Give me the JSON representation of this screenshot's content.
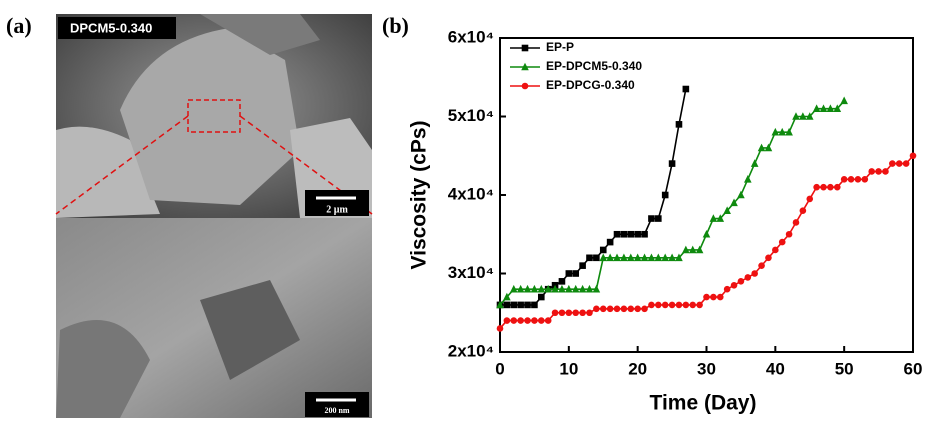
{
  "figure": {
    "panel_a": "(a)",
    "sem_label": "DPCM5-0.340",
    "scale_top": "2 µm",
    "scale_bottom": "200 nm"
  },
  "chart_data": {
    "type": "line",
    "panel_label": "(b)",
    "xlabel": "Time (Day)",
    "ylabel": "Viscosity (cPs)",
    "xlim": [
      0,
      60
    ],
    "xticks": [
      0,
      10,
      20,
      30,
      40,
      50,
      60
    ],
    "ylim": [
      20000,
      60000
    ],
    "yticks": [
      {
        "value": 20000,
        "label": "2x10⁴"
      },
      {
        "value": 30000,
        "label": "3x10⁴"
      },
      {
        "value": 40000,
        "label": "4x10⁴"
      },
      {
        "value": 50000,
        "label": "5x10⁴"
      },
      {
        "value": 60000,
        "label": "6x10⁴"
      }
    ],
    "legend": "upper left",
    "series": [
      {
        "name": "EP-P",
        "color": "#000000",
        "marker": "square",
        "x": [
          0,
          1,
          2,
          3,
          4,
          5,
          6,
          7,
          8,
          9,
          10,
          11,
          12,
          13,
          14,
          15,
          16,
          17,
          18,
          19,
          20,
          21,
          22,
          23,
          24,
          25,
          26,
          27
        ],
        "values": [
          26000,
          26000,
          26000,
          26000,
          26000,
          26000,
          27000,
          28000,
          28500,
          29000,
          30000,
          30000,
          31000,
          32000,
          32000,
          33000,
          34000,
          35000,
          35000,
          35000,
          35000,
          35000,
          37000,
          37000,
          40000,
          44000,
          49000,
          53500
        ]
      },
      {
        "name": "EP-DPCM5-0.340",
        "color": "#0e8a0e",
        "marker": "triangle",
        "x": [
          0,
          1,
          2,
          3,
          4,
          5,
          6,
          7,
          8,
          9,
          10,
          11,
          12,
          13,
          14,
          15,
          16,
          17,
          18,
          19,
          20,
          21,
          22,
          23,
          24,
          25,
          26,
          27,
          28,
          29,
          30,
          31,
          32,
          33,
          34,
          35,
          36,
          37,
          38,
          39,
          40,
          41,
          42,
          43,
          44,
          45,
          46,
          47,
          48,
          49,
          50
        ],
        "values": [
          26000,
          27000,
          28000,
          28000,
          28000,
          28000,
          28000,
          28000,
          28000,
          28000,
          28000,
          28000,
          28000,
          28000,
          28000,
          32000,
          32000,
          32000,
          32000,
          32000,
          32000,
          32000,
          32000,
          32000,
          32000,
          32000,
          32000,
          33000,
          33000,
          33000,
          35000,
          37000,
          37000,
          38000,
          39000,
          40000,
          42000,
          44000,
          46000,
          46000,
          48000,
          48000,
          48000,
          50000,
          50000,
          50000,
          51000,
          51000,
          51000,
          51000,
          52000
        ]
      },
      {
        "name": "EP-DPCG-0.340",
        "color": "#ee1111",
        "marker": "circle",
        "x": [
          0,
          1,
          2,
          3,
          4,
          5,
          6,
          7,
          8,
          9,
          10,
          11,
          12,
          13,
          14,
          15,
          16,
          17,
          18,
          19,
          20,
          21,
          22,
          23,
          24,
          25,
          26,
          27,
          28,
          29,
          30,
          31,
          32,
          33,
          34,
          35,
          36,
          37,
          38,
          39,
          40,
          41,
          42,
          43,
          44,
          45,
          46,
          47,
          48,
          49,
          50,
          51,
          52,
          53,
          54,
          55,
          56,
          57,
          58,
          59,
          60
        ],
        "values": [
          23000,
          24000,
          24000,
          24000,
          24000,
          24000,
          24000,
          24000,
          25000,
          25000,
          25000,
          25000,
          25000,
          25000,
          25500,
          25500,
          25500,
          25500,
          25500,
          25500,
          25500,
          25500,
          26000,
          26000,
          26000,
          26000,
          26000,
          26000,
          26000,
          26000,
          27000,
          27000,
          27000,
          28000,
          28500,
          29000,
          29500,
          30000,
          31000,
          32000,
          33000,
          34000,
          35000,
          36500,
          38000,
          39500,
          41000,
          41000,
          41000,
          41000,
          42000,
          42000,
          42000,
          42000,
          43000,
          43000,
          43000,
          44000,
          44000,
          44000,
          45000
        ]
      }
    ]
  }
}
